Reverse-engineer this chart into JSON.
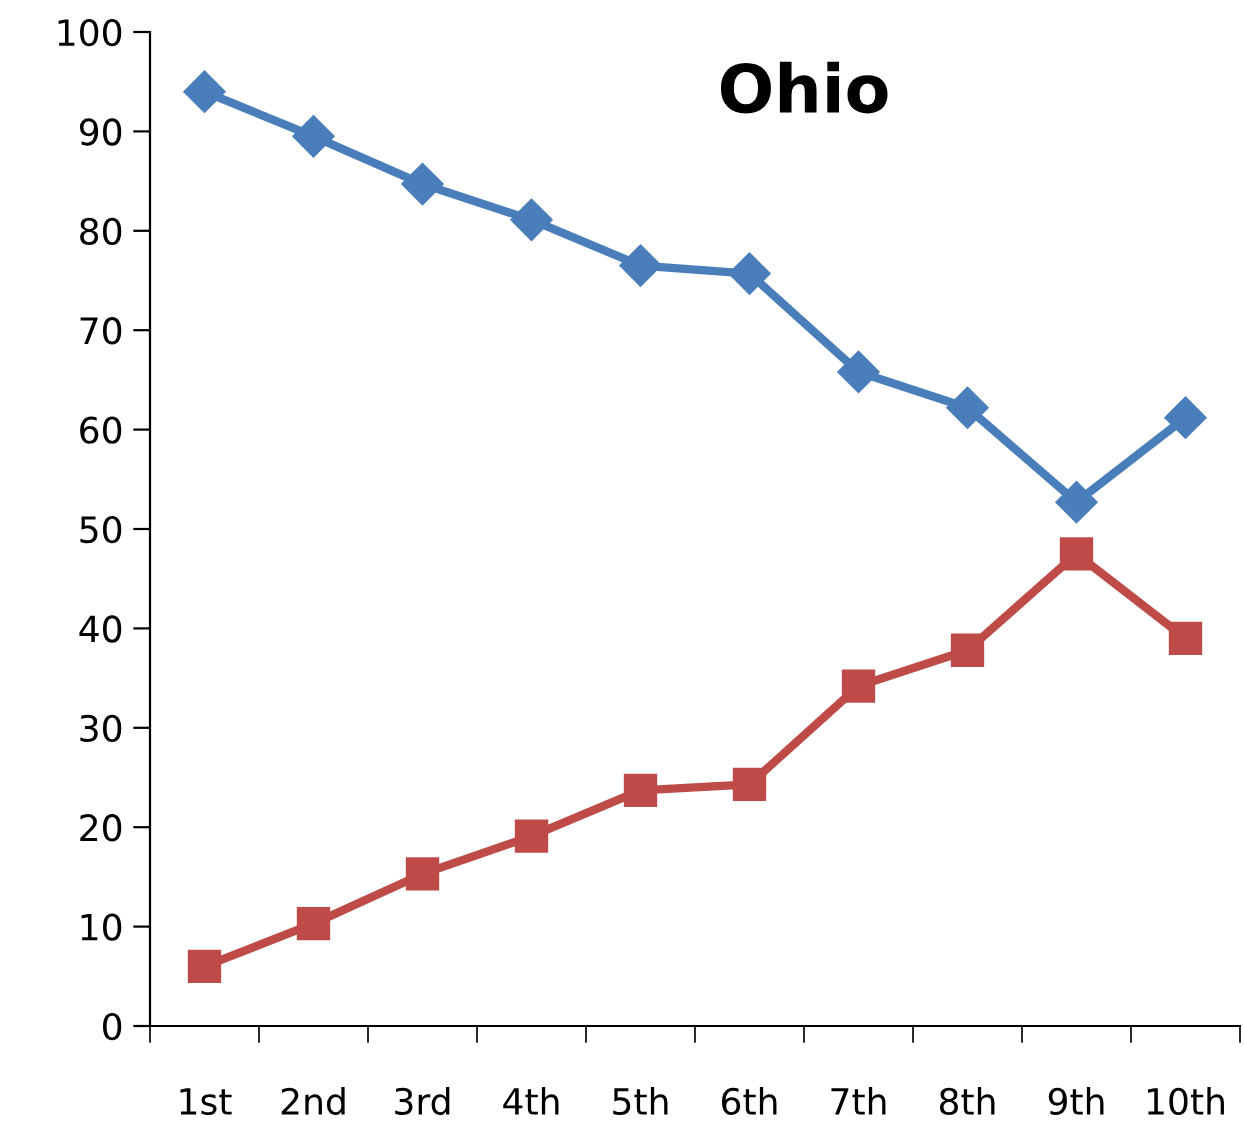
{
  "chart_data": {
    "type": "line",
    "title": "Ohio",
    "categories": [
      "1st",
      "2nd",
      "3rd",
      "4th",
      "5th",
      "6th",
      "7th",
      "8th",
      "9th",
      "10th"
    ],
    "series": [
      {
        "color": "#4a7ebb",
        "marker": "diamond",
        "values": [
          94.0,
          89.5,
          84.7,
          81.1,
          76.5,
          75.7,
          65.8,
          62.2,
          52.7,
          61.2
        ]
      },
      {
        "color": "#be4b48",
        "marker": "square",
        "values": [
          6.0,
          10.3,
          15.3,
          19.1,
          23.7,
          24.3,
          34.2,
          37.8,
          47.5,
          39.0
        ]
      }
    ],
    "ylim": [
      0,
      100
    ],
    "yticks": [
      0,
      10,
      20,
      30,
      40,
      50,
      60,
      70,
      80,
      90,
      100
    ],
    "grid": false,
    "legend": false
  }
}
